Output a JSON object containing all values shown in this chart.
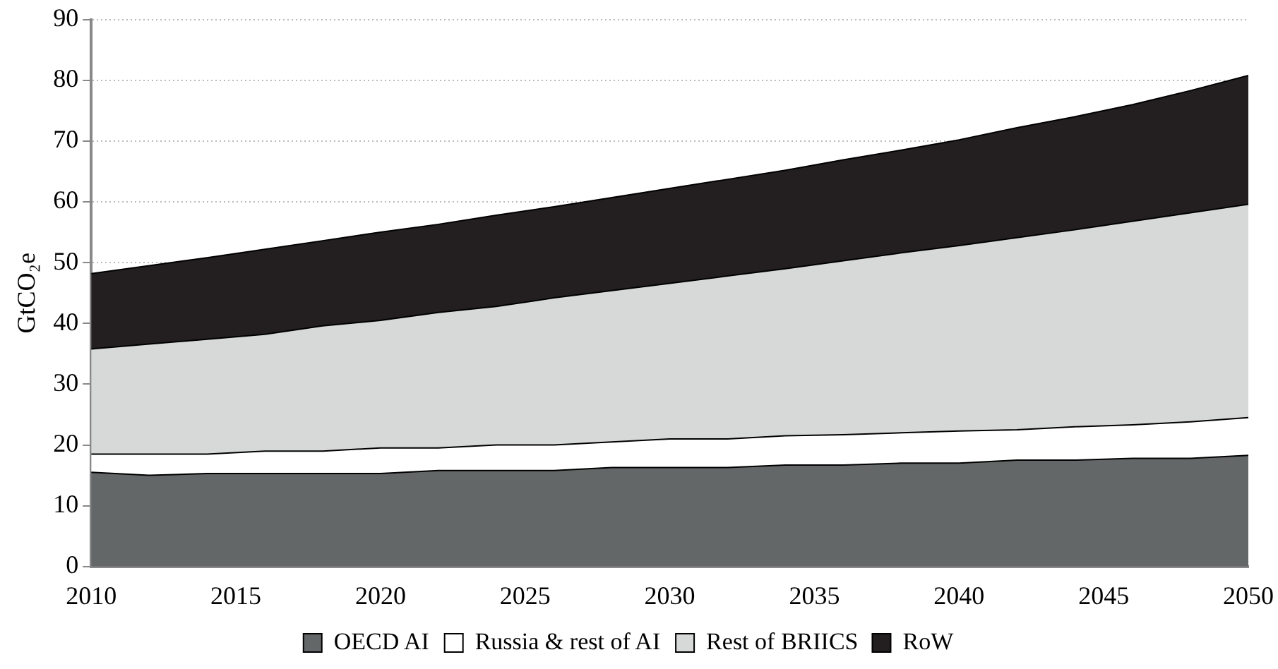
{
  "chart_data": {
    "type": "area",
    "stacked": true,
    "ylabel": "GtCO₂e",
    "x": [
      2010,
      2012,
      2014,
      2016,
      2018,
      2020,
      2022,
      2024,
      2026,
      2028,
      2030,
      2032,
      2034,
      2036,
      2038,
      2040,
      2042,
      2044,
      2046,
      2048,
      2050
    ],
    "xlim": [
      2010,
      2050
    ],
    "xticks": [
      2010,
      2015,
      2020,
      2025,
      2030,
      2035,
      2040,
      2045,
      2050
    ],
    "ylim": [
      0,
      90
    ],
    "yticks": [
      0,
      10,
      20,
      30,
      40,
      50,
      60,
      70,
      80,
      90
    ],
    "grid": "y",
    "legend": "bottom",
    "series": [
      {
        "name": "OECD AI",
        "color": "#646767",
        "values": [
          15.5,
          15.0,
          15.3,
          15.3,
          15.3,
          15.3,
          15.8,
          15.8,
          15.8,
          16.3,
          16.3,
          16.3,
          16.7,
          16.7,
          17.0,
          17.0,
          17.5,
          17.5,
          17.8,
          17.8,
          18.3
        ]
      },
      {
        "name": "Russia & rest of AI",
        "color": "#ffffff",
        "values": [
          3.0,
          3.5,
          3.2,
          3.7,
          3.7,
          4.2,
          3.7,
          4.2,
          4.2,
          4.2,
          4.7,
          4.7,
          4.8,
          5.0,
          5.0,
          5.3,
          5.0,
          5.5,
          5.5,
          6.0,
          6.2
        ]
      },
      {
        "name": "Rest of BRIICS",
        "color": "#d7d8d8",
        "values": [
          17.3,
          18.1,
          18.9,
          19.2,
          20.6,
          21.0,
          22.3,
          22.8,
          24.2,
          24.9,
          25.6,
          26.8,
          27.5,
          28.6,
          29.6,
          30.5,
          31.6,
          32.4,
          33.5,
          34.4,
          35.1
        ]
      },
      {
        "name": "RoW",
        "color": "#231f20",
        "values": [
          12.4,
          12.9,
          13.4,
          14.0,
          14.0,
          14.5,
          14.5,
          15.0,
          15.0,
          15.3,
          15.6,
          15.9,
          16.2,
          16.6,
          16.9,
          17.4,
          18.1,
          18.6,
          19.2,
          20.1,
          21.2
        ]
      }
    ]
  }
}
